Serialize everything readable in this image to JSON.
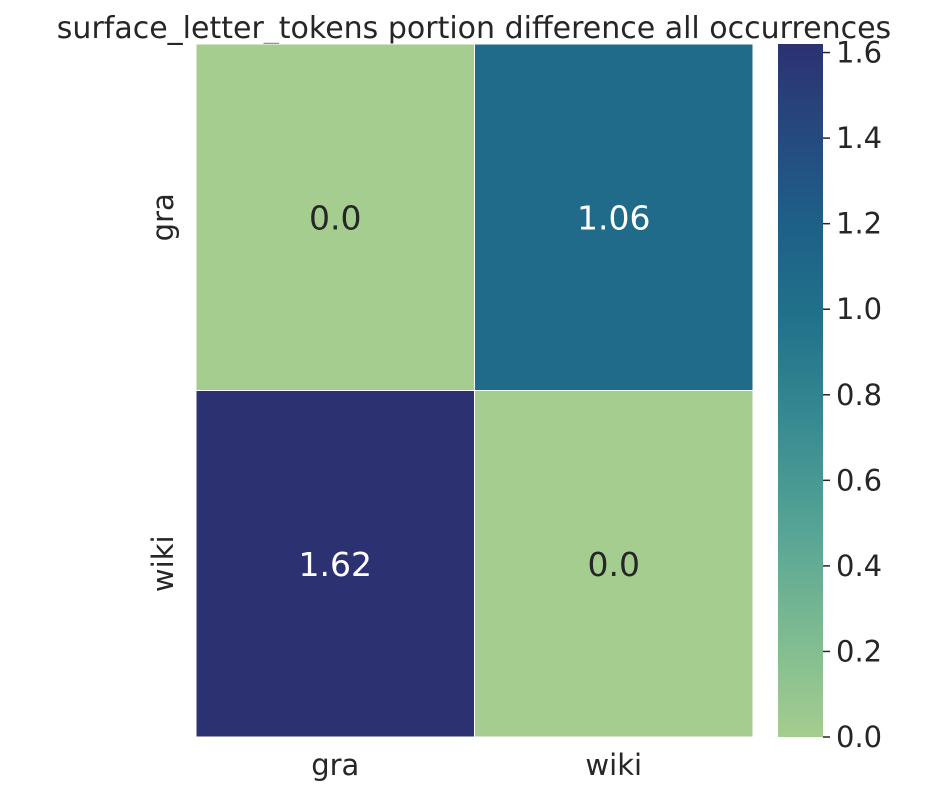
{
  "chart_data": {
    "type": "heatmap",
    "title": "surface_letter_tokens portion difference all occurrences",
    "xlabel": "",
    "ylabel": "",
    "x_categories": [
      "gra",
      "wiki"
    ],
    "y_categories": [
      "gra",
      "wiki"
    ],
    "values": [
      [
        0.0,
        1.06
      ],
      [
        1.62,
        0.0
      ]
    ],
    "cell_labels": [
      [
        "0.0",
        "1.06"
      ],
      [
        "1.62",
        "0.0"
      ]
    ],
    "colorbar": {
      "range": [
        0,
        1.62
      ],
      "ticks": [
        "0.0",
        "0.2",
        "0.4",
        "0.6",
        "0.8",
        "1.0",
        "1.2",
        "1.4",
        "1.6"
      ],
      "tick_values": [
        0,
        0.2,
        0.4,
        0.6,
        0.8,
        1.0,
        1.2,
        1.4,
        1.6
      ],
      "colormap": "crest",
      "color_low": "#a5cd8f",
      "color_high": "#2c3172"
    },
    "grid": false,
    "legend": "colorbar-right"
  }
}
